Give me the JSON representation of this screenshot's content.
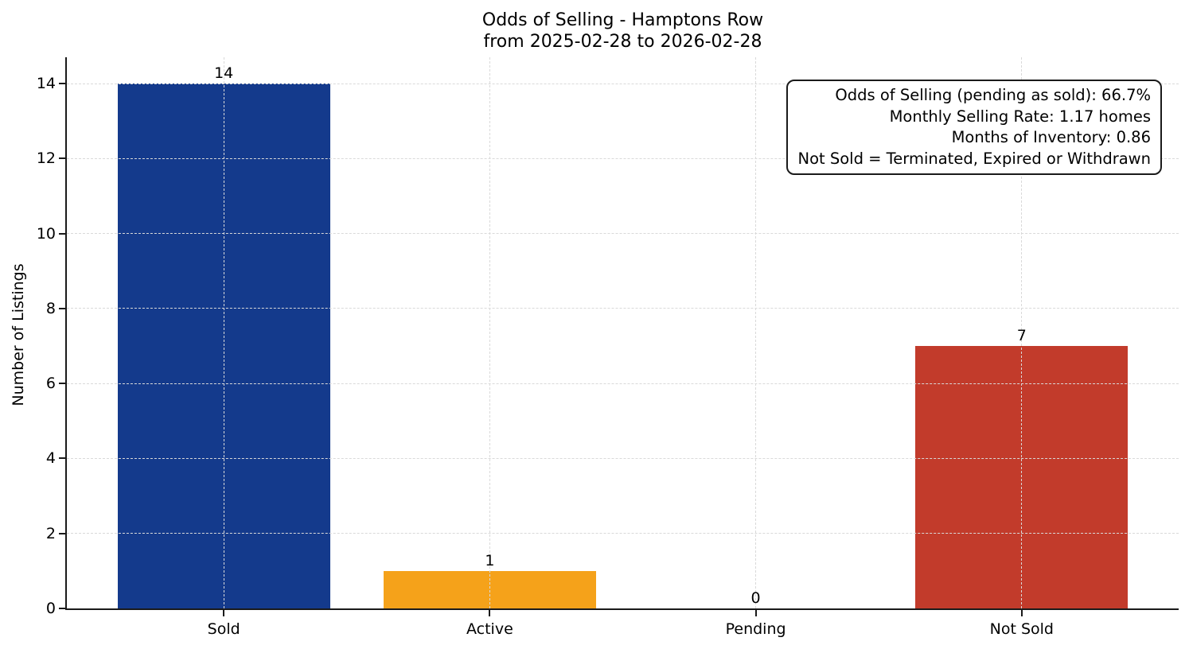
{
  "chart_data": {
    "type": "bar",
    "title": "Odds of Selling - Hamptons Row",
    "subtitle": "from 2025-02-28 to 2026-02-28",
    "ylabel": "Number of Listings",
    "xlabel": "",
    "categories": [
      "Sold",
      "Active",
      "Pending",
      "Not Sold"
    ],
    "values": [
      14,
      1,
      0,
      7
    ],
    "bar_value_labels": [
      "14",
      "1",
      "0",
      "7"
    ],
    "bar_colors": [
      "#143a8c",
      "#f5a21a",
      "#999999",
      "#c23b2b"
    ],
    "yticks": [
      0,
      2,
      4,
      6,
      8,
      10,
      12,
      14
    ],
    "ylim": [
      0,
      14.7
    ],
    "grid": "dashed light-gray, horizontal and vertical, drawn above bars",
    "legend_position": "none",
    "annotation": {
      "lines": [
        "Odds of Selling (pending as sold): 66.7%",
        "Monthly Selling Rate: 1.17 homes",
        "Months of Inventory: 0.86",
        "Not Sold = Terminated, Expired or Withdrawn"
      ]
    },
    "colors": {
      "sold_bar": "#143a8c",
      "active_bar": "#f5a21a",
      "not_sold_bar": "#c23b2b",
      "axis": "#1a1a1a",
      "gridline": "#d9d9d9",
      "text": "#000000",
      "background": "#ffffff"
    }
  }
}
